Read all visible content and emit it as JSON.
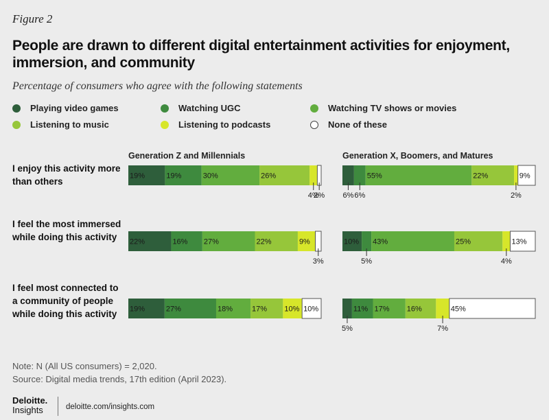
{
  "figure_label": "Figure 2",
  "title": "People are drawn to different digital entertainment activities for enjoyment, immersion, and community",
  "subtitle": "Percentage of consumers who agree with the following statements",
  "note": "Note: N (All US consumers) = 2,020.",
  "source": "Source: Digital media trends, 17th edition (April 2023).",
  "brand": {
    "name": "Deloitte.",
    "sub": "Insights",
    "url": "deloitte.com/insights.com"
  },
  "colors": {
    "video_games": "#2e5e3b",
    "ugc": "#3e8a3e",
    "tv": "#62ad3e",
    "music": "#96c63a",
    "podcasts": "#d7e62a",
    "none": "#ffffff"
  },
  "chart_data": {
    "type": "bar",
    "orientation": "horizontal-stacked",
    "title": "People are drawn to different digital entertainment activities for enjoyment, immersion, and community",
    "subtitle": "Percentage of consumers who agree with the following statements",
    "legend": [
      {
        "name": "Playing video games",
        "color": "#2e5e3b"
      },
      {
        "name": "Watching UGC",
        "color": "#3e8a3e"
      },
      {
        "name": "Watching TV shows or movies",
        "color": "#62ad3e"
      },
      {
        "name": "Listening to music",
        "color": "#96c63a"
      },
      {
        "name": "Listening to podcasts",
        "color": "#d7e62a"
      },
      {
        "name": "None of these",
        "color": "#ffffff"
      }
    ],
    "statements": [
      "I enjoy this activity more than others",
      "I feel the most immersed while doing this activity",
      "I feel most connected to a community of people while doing this activity"
    ],
    "groups": [
      {
        "name": "Generation Z and Millennials",
        "values": [
          [
            19,
            19,
            30,
            26,
            4,
            2
          ],
          [
            22,
            16,
            27,
            22,
            9,
            3
          ],
          [
            19,
            27,
            18,
            17,
            10,
            10
          ]
        ]
      },
      {
        "name": "Generation X, Boomers, and Matures",
        "values": [
          [
            6,
            6,
            55,
            22,
            2,
            9
          ],
          [
            10,
            5,
            43,
            25,
            4,
            13
          ],
          [
            5,
            11,
            17,
            16,
            7,
            45
          ]
        ]
      }
    ],
    "unit": "%"
  }
}
